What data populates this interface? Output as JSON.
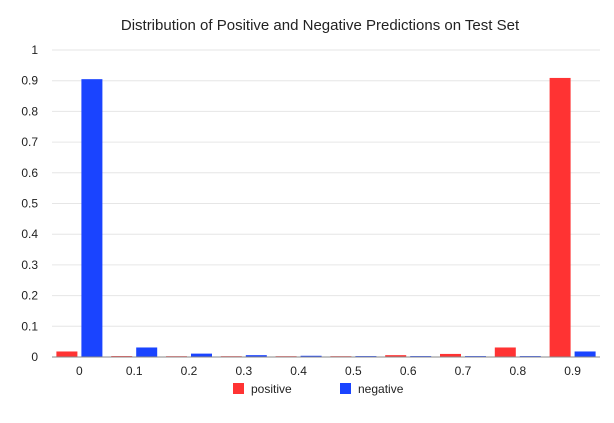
{
  "chart_data": {
    "type": "bar",
    "title": "Distribution of Positive and Negative Predictions on Test Set",
    "xlabel": "",
    "ylabel": "",
    "categories": [
      "0",
      "0.1",
      "0.2",
      "0.3",
      "0.4",
      "0.5",
      "0.6",
      "0.7",
      "0.8",
      "0.9"
    ],
    "series": [
      {
        "name": "positive",
        "color": "#ff3333",
        "values": [
          0.018,
          0.003,
          0.002,
          0.002,
          0.002,
          0.002,
          0.006,
          0.01,
          0.031,
          0.909
        ]
      },
      {
        "name": "negative",
        "color": "#1a44ff",
        "values": [
          0.905,
          0.031,
          0.011,
          0.006,
          0.004,
          0.003,
          0.003,
          0.003,
          0.003,
          0.018
        ]
      }
    ],
    "ylim": [
      0,
      1
    ],
    "yticks": [
      "0",
      "0.1",
      "0.2",
      "0.3",
      "0.4",
      "0.5",
      "0.6",
      "0.7",
      "0.8",
      "0.9",
      "1"
    ],
    "grid": true,
    "legend_position": "bottom"
  }
}
